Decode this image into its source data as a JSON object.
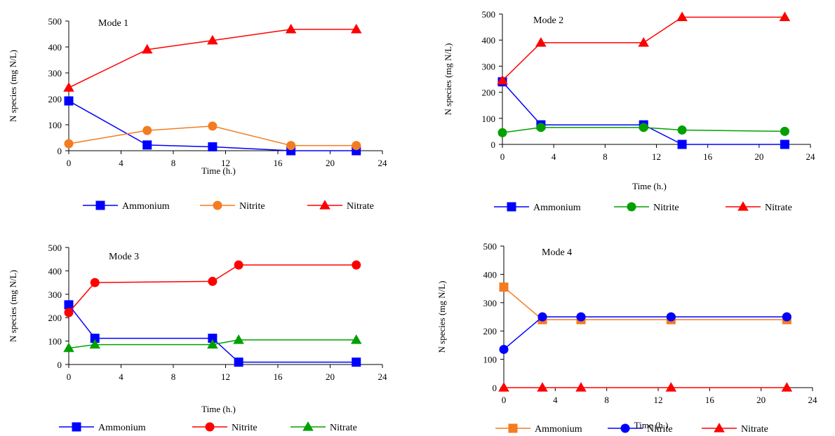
{
  "chart_data": [
    {
      "type": "line",
      "title": "Mode 1",
      "xlabel": "Time (h.)",
      "ylabel": "N species (mg N/L)",
      "xlim": [
        0,
        24
      ],
      "ylim": [
        0,
        500
      ],
      "xticks": [
        0,
        4,
        8,
        12,
        16,
        20,
        24
      ],
      "yticks": [
        0,
        100,
        200,
        300,
        400,
        500
      ],
      "grid": false,
      "legend_position": "bottom",
      "series": [
        {
          "name": "Ammonium",
          "color": "#0000ff",
          "marker": "square",
          "x": [
            0,
            6,
            11,
            17,
            22
          ],
          "y": [
            192,
            22,
            15,
            0,
            0
          ]
        },
        {
          "name": "Nitrite",
          "color": "#f47c20",
          "marker": "circle",
          "x": [
            0,
            6,
            11,
            17,
            22
          ],
          "y": [
            27,
            78,
            95,
            20,
            20
          ]
        },
        {
          "name": "Nitrate",
          "color": "#ff0000",
          "marker": "triangle",
          "x": [
            0,
            6,
            11,
            17,
            22
          ],
          "y": [
            243,
            390,
            425,
            468,
            468
          ]
        }
      ]
    },
    {
      "type": "line",
      "title": "Mode 2",
      "xlabel": "Time (h.)",
      "ylabel": "N species (mg N/L)",
      "xlim": [
        0,
        24
      ],
      "ylim": [
        0,
        500
      ],
      "xticks": [
        0,
        4,
        8,
        12,
        16,
        20,
        24
      ],
      "yticks": [
        0,
        100,
        200,
        300,
        400,
        500
      ],
      "grid": false,
      "legend_position": "bottom",
      "series": [
        {
          "name": "Ammonium",
          "color": "#0000ff",
          "marker": "square",
          "x": [
            0,
            3,
            11,
            14,
            22
          ],
          "y": [
            240,
            75,
            75,
            0,
            0
          ]
        },
        {
          "name": "Nitrite",
          "color": "#00a000",
          "marker": "circle",
          "x": [
            0,
            3,
            11,
            14,
            22
          ],
          "y": [
            45,
            65,
            65,
            55,
            50
          ]
        },
        {
          "name": "Nitrate",
          "color": "#ff0000",
          "marker": "triangle",
          "x": [
            0,
            3,
            11,
            14,
            22
          ],
          "y": [
            245,
            390,
            390,
            488,
            488
          ]
        }
      ]
    },
    {
      "type": "line",
      "title": "Mode 3",
      "xlabel": "Time (h.)",
      "ylabel": "N species (mg N/L)",
      "xlim": [
        0,
        24
      ],
      "ylim": [
        0,
        500
      ],
      "xticks": [
        0,
        4,
        8,
        12,
        16,
        20,
        24
      ],
      "yticks": [
        0,
        100,
        200,
        300,
        400,
        500
      ],
      "grid": false,
      "legend_position": "bottom",
      "series": [
        {
          "name": "Ammonium",
          "color": "#0000ff",
          "marker": "square",
          "x": [
            0,
            2,
            11,
            13,
            22
          ],
          "y": [
            255,
            112,
            112,
            10,
            10
          ]
        },
        {
          "name": "Nitrite",
          "color": "#ff0000",
          "marker": "circle",
          "x": [
            0,
            2,
            11,
            13,
            22
          ],
          "y": [
            222,
            350,
            355,
            425,
            425
          ]
        },
        {
          "name": "Nitrate",
          "color": "#00a000",
          "marker": "triangle",
          "x": [
            0,
            2,
            11,
            13,
            22
          ],
          "y": [
            70,
            85,
            85,
            105,
            105
          ]
        }
      ]
    },
    {
      "type": "line",
      "title": "Mode 4",
      "xlabel": "Time (h.)",
      "ylabel": "N species (mg N/L)",
      "xlim": [
        0,
        24
      ],
      "ylim": [
        0,
        500
      ],
      "xticks": [
        0,
        4,
        8,
        12,
        16,
        20,
        24
      ],
      "yticks": [
        0,
        100,
        200,
        300,
        400,
        500
      ],
      "grid": false,
      "legend_position": "bottom",
      "series": [
        {
          "name": "Ammonium",
          "color": "#f47c20",
          "marker": "square",
          "x": [
            0,
            3,
            6,
            13,
            22
          ],
          "y": [
            355,
            240,
            240,
            240,
            240
          ]
        },
        {
          "name": "Nitrite",
          "color": "#0000ff",
          "marker": "circle",
          "x": [
            0,
            3,
            6,
            13,
            22
          ],
          "y": [
            135,
            250,
            250,
            250,
            250
          ]
        },
        {
          "name": "Nitrate",
          "color": "#ff0000",
          "marker": "triangle",
          "x": [
            0,
            3,
            6,
            13,
            22
          ],
          "y": [
            0,
            0,
            0,
            0,
            0
          ]
        }
      ]
    }
  ]
}
